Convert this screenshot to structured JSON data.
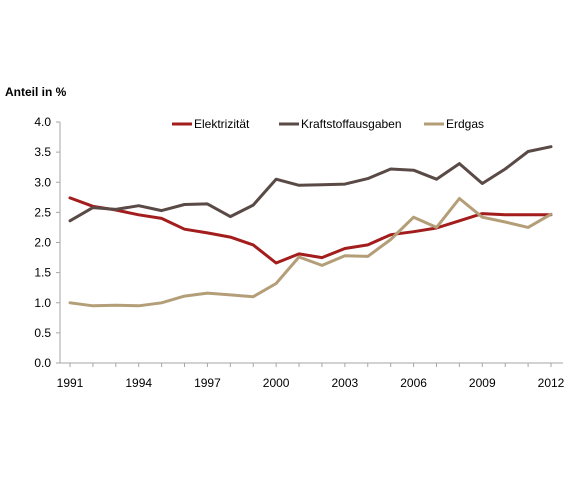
{
  "chart_data": {
    "type": "line",
    "ylabel": "Anteil in %",
    "ylim": [
      0,
      4
    ],
    "yticks": [
      "0.0",
      "0.5",
      "1.0",
      "1.5",
      "2.0",
      "2.5",
      "3.0",
      "3.5",
      "4.0"
    ],
    "xlim": [
      1991,
      2012
    ],
    "xticks": [
      "1991",
      "1994",
      "1997",
      "2000",
      "2003",
      "2006",
      "2009",
      "2012"
    ],
    "x": [
      1991,
      1992,
      1993,
      1994,
      1995,
      1996,
      1997,
      1998,
      1999,
      2000,
      2001,
      2002,
      2003,
      2004,
      2005,
      2006,
      2007,
      2008,
      2009,
      2010,
      2011,
      2012
    ],
    "legend_position": "top",
    "grid": false,
    "series": [
      {
        "name": "Elektrizität",
        "color": "#a31d1d",
        "values": [
          2.74,
          2.6,
          2.54,
          2.46,
          2.4,
          2.22,
          2.16,
          2.09,
          1.96,
          1.66,
          1.81,
          1.75,
          1.9,
          1.96,
          2.13,
          2.18,
          2.24,
          2.36,
          2.48,
          2.46,
          2.46,
          2.46
        ]
      },
      {
        "name": "Kraftstoffausgaben",
        "color": "#5a4a45",
        "values": [
          2.36,
          2.58,
          2.55,
          2.61,
          2.53,
          2.63,
          2.64,
          2.43,
          2.62,
          3.05,
          2.95,
          2.96,
          2.97,
          3.06,
          3.22,
          3.2,
          3.05,
          3.31,
          2.98,
          3.22,
          3.51,
          3.59
        ]
      },
      {
        "name": "Erdgas",
        "color": "#b39e78",
        "values": [
          1.0,
          0.95,
          0.96,
          0.95,
          1.0,
          1.11,
          1.16,
          1.13,
          1.1,
          1.32,
          1.76,
          1.62,
          1.78,
          1.77,
          2.05,
          2.42,
          2.25,
          2.73,
          2.42,
          2.34,
          2.25,
          2.47
        ]
      }
    ]
  }
}
